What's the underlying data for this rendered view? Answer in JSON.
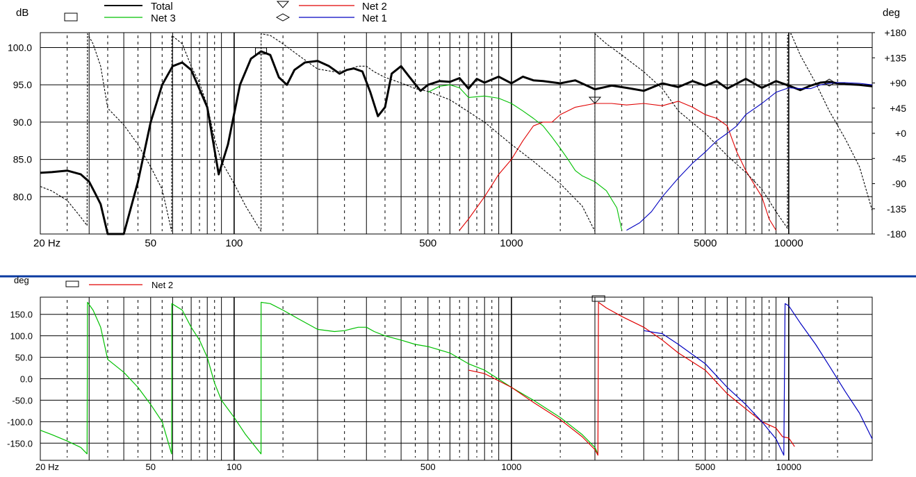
{
  "colors": {
    "total": "#000000",
    "net1": "#0000c0",
    "net2": "#e00000",
    "net3": "#00c000",
    "divider": "#0a3aa0",
    "grid": "#000000"
  },
  "x_ticks": [
    "20 Hz",
    "50",
    "100",
    "500",
    "1000",
    "5000",
    "10000"
  ],
  "top": {
    "unit_left": "dB",
    "unit_right": "deg",
    "legend": [
      {
        "name": "Total",
        "marker": "square",
        "line_key": "total"
      },
      {
        "name": "Net 3",
        "marker": "",
        "line_key": "net3"
      },
      {
        "name": "Net 2",
        "marker": "triangle",
        "line_key": "net2"
      },
      {
        "name": "Net 1",
        "marker": "diamond",
        "line_key": "net1"
      }
    ]
  },
  "bottom": {
    "unit_left": "deg",
    "legend": [
      {
        "name": "Net 2",
        "marker": "square",
        "line_key": "net2"
      }
    ]
  },
  "chart_data": [
    {
      "type": "line",
      "x_scale": "log",
      "xlim": [
        20,
        20000
      ],
      "x_tick_labels": [
        "20 Hz",
        "50",
        "100",
        "500",
        "1000",
        "5000",
        "10000"
      ],
      "ylabel": "dB",
      "ylim": [
        75,
        102
      ],
      "y_tick_labels": [
        "100.0",
        "95.0",
        "90.0",
        "85.0",
        "80.0"
      ],
      "y2label": "deg",
      "y2lim": [
        -180,
        180
      ],
      "y2_tick_labels": [
        "+180",
        "+135",
        "+90",
        "+45",
        "+0",
        "-45",
        "-90",
        "-135",
        "-180"
      ],
      "grid": true,
      "legend_position": "top",
      "series": [
        {
          "name": "Total",
          "axis": "left",
          "x": [
            20,
            22,
            25,
            28,
            30,
            31.5,
            33,
            35,
            40,
            45,
            50,
            55,
            60,
            65,
            70,
            80,
            88,
            95,
            105,
            115,
            125,
            135,
            145,
            155,
            165,
            180,
            200,
            220,
            240,
            255,
            270,
            290,
            310,
            330,
            350,
            370,
            400,
            430,
            470,
            500,
            550,
            600,
            650,
            700,
            750,
            800,
            900,
            1000,
            1100,
            1200,
            1300,
            1500,
            1700,
            2000,
            2300,
            2600,
            3000,
            3500,
            4000,
            4500,
            5000,
            5500,
            6000,
            7000,
            8000,
            9000,
            10000,
            11000,
            12000,
            13000,
            14000,
            15000,
            16000,
            18000,
            20000
          ],
          "y": [
            83.2,
            83.3,
            83.5,
            83.0,
            82.0,
            80.5,
            79.0,
            75.0,
            75.0,
            82.0,
            90.0,
            95.0,
            97.5,
            98.0,
            97.0,
            92.0,
            83.0,
            87.0,
            95.0,
            98.5,
            99.5,
            99.0,
            96.0,
            95.0,
            97.0,
            98.0,
            98.2,
            97.5,
            96.5,
            97.0,
            97.2,
            96.8,
            94.0,
            90.8,
            92.0,
            96.5,
            97.5,
            96.0,
            94.2,
            95.0,
            95.5,
            95.4,
            95.9,
            94.5,
            95.8,
            95.3,
            96.1,
            95.2,
            96.1,
            95.6,
            95.5,
            95.2,
            95.6,
            94.4,
            94.9,
            94.6,
            94.2,
            95.2,
            94.7,
            95.5,
            94.9,
            95.5,
            94.5,
            95.8,
            94.6,
            95.5,
            94.9,
            94.3,
            94.9,
            95.3,
            95.4,
            95.2,
            95.1,
            95.0,
            94.8
          ]
        },
        {
          "name": "Net 3",
          "axis": "left",
          "x": [
            500,
            550,
            600,
            650,
            700,
            800,
            900,
            1000,
            1100,
            1200,
            1300,
            1400,
            1500,
            1600,
            1700,
            1800,
            2000,
            2200,
            2400,
            2500
          ],
          "y": [
            94.0,
            94.8,
            95.0,
            94.6,
            93.3,
            93.5,
            93.2,
            92.5,
            91.5,
            90.5,
            89.5,
            88.0,
            86.5,
            85.0,
            83.5,
            82.8,
            82.0,
            80.8,
            78.5,
            75.5
          ]
        },
        {
          "name": "Net 2",
          "axis": "left",
          "x": [
            650,
            700,
            800,
            900,
            1000,
            1100,
            1200,
            1300,
            1400,
            1500,
            1700,
            2000,
            2300,
            2600,
            3000,
            3500,
            4000,
            4500,
            5000,
            5500,
            6000,
            6500,
            7000,
            8000,
            8500,
            9000
          ],
          "y": [
            75.5,
            77.0,
            80.0,
            83.0,
            85.0,
            87.5,
            89.5,
            90.0,
            90.0,
            91.0,
            92.0,
            92.5,
            92.5,
            92.3,
            92.5,
            92.2,
            92.8,
            92.0,
            91.0,
            90.5,
            89.5,
            86.0,
            83.5,
            80.0,
            77.0,
            75.5
          ]
        },
        {
          "name": "Net 1",
          "axis": "left",
          "x": [
            2600,
            2900,
            3200,
            3500,
            4000,
            4500,
            5000,
            5500,
            6000,
            6500,
            7000,
            8000,
            9000,
            10000,
            11000,
            12000,
            13000,
            14000,
            15000,
            16000,
            18000,
            20000
          ],
          "y": [
            75.5,
            76.5,
            78.0,
            80.0,
            82.5,
            84.5,
            86.0,
            87.5,
            88.5,
            89.5,
            91.0,
            92.5,
            94.0,
            94.6,
            94.5,
            94.5,
            95.0,
            95.2,
            95.3,
            95.3,
            95.2,
            95.0
          ]
        },
        {
          "name": "Phase (Total)",
          "axis": "right",
          "style": "dotted",
          "x": [
            20,
            22,
            25,
            28,
            29.5,
            29.6,
            31,
            33,
            35,
            40,
            45,
            50,
            55,
            59.5,
            59.6,
            65,
            70,
            75,
            80,
            85,
            90,
            100,
            110,
            125,
            125.1,
            135,
            150,
            170,
            200,
            230,
            250,
            280,
            300,
            320,
            350,
            400,
            450,
            500,
            600,
            800,
            1000,
            1200,
            1500,
            1800,
            1999,
            2000,
            2200,
            2500,
            3000,
            3500,
            4000,
            5000,
            6000,
            7000,
            8000,
            9000,
            9900,
            9901,
            10200,
            11000,
            12500,
            14000,
            16000,
            18000,
            20000
          ],
          "y": [
            -95,
            -103,
            -120,
            -150,
            -165,
            178,
            160,
            120,
            45,
            15,
            -20,
            -60,
            -100,
            -175,
            175,
            160,
            120,
            90,
            50,
            -10,
            -50,
            -90,
            -130,
            -175,
            178,
            175,
            160,
            140,
            115,
            110,
            112,
            120,
            120,
            110,
            100,
            90,
            80,
            75,
            60,
            20,
            -20,
            -50,
            -90,
            -130,
            -175,
            178,
            160,
            140,
            110,
            80,
            40,
            0,
            -40,
            -70,
            -100,
            -140,
            -170,
            175,
            178,
            140,
            90,
            40,
            -10,
            -60,
            -138
          ]
        }
      ]
    },
    {
      "type": "line",
      "x_scale": "log",
      "xlim": [
        20,
        20000
      ],
      "x_tick_labels": [
        "20 Hz",
        "50",
        "100",
        "500",
        "1000",
        "5000",
        "10000"
      ],
      "ylabel": "deg",
      "ylim": [
        -190,
        190
      ],
      "y_tick_labels": [
        "150.0",
        "100.0",
        "50.0",
        "0.0",
        "-50.0",
        "-100.0",
        "-150.0"
      ],
      "grid": true,
      "legend_position": "top",
      "series": [
        {
          "name": "Phase Net 3",
          "color_key": "net3",
          "x": [
            20,
            22,
            25,
            28,
            29.5,
            29.6,
            31,
            33,
            35,
            40,
            45,
            50,
            55,
            59.5,
            59.6,
            65,
            70,
            75,
            80,
            85,
            90,
            100,
            110,
            125,
            125.1,
            135,
            150,
            170,
            200,
            230,
            250,
            280,
            300,
            320,
            350,
            400,
            450,
            500,
            600,
            700,
            800,
            1000,
            1200,
            1500,
            1800,
            2000,
            2050
          ],
          "y": [
            -120,
            -130,
            -145,
            -160,
            -175,
            178,
            160,
            120,
            45,
            15,
            -20,
            -60,
            -100,
            -175,
            175,
            160,
            120,
            90,
            50,
            -10,
            -50,
            -90,
            -130,
            -175,
            178,
            175,
            160,
            140,
            115,
            110,
            112,
            120,
            120,
            110,
            100,
            90,
            80,
            75,
            60,
            35,
            20,
            -20,
            -50,
            -90,
            -130,
            -160,
            -175
          ]
        },
        {
          "name": "Net 2",
          "color_key": "net2",
          "x": [
            700,
            800,
            1000,
            1200,
            1500,
            1800,
            2000,
            2050,
            2060,
            2200,
            2500,
            3000,
            3500,
            4000,
            5000,
            6000,
            7000,
            8000,
            9000,
            9500,
            10000,
            10500
          ],
          "y": [
            20,
            12,
            -20,
            -55,
            -95,
            -135,
            -165,
            -178,
            178,
            165,
            145,
            120,
            90,
            60,
            20,
            -35,
            -70,
            -100,
            -115,
            -135,
            -138,
            -158
          ]
        },
        {
          "name": "Net 1",
          "color_key": "net1",
          "x": [
            3000,
            3500,
            4000,
            5000,
            6000,
            7000,
            8000,
            9000,
            9600,
            9700,
            10000,
            11000,
            12500,
            14000,
            16000,
            18000,
            20000
          ],
          "y": [
            112,
            105,
            80,
            35,
            -20,
            -60,
            -100,
            -140,
            -178,
            175,
            170,
            130,
            80,
            30,
            -30,
            -80,
            -140
          ]
        }
      ]
    }
  ]
}
